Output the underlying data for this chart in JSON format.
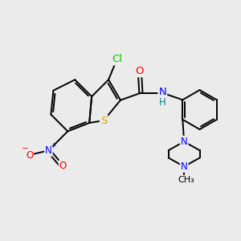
{
  "background_color": "#ebebeb",
  "bond_color": "#000000",
  "bond_width": 1.4,
  "atom_colors": {
    "C": "#000000",
    "Cl": "#00cc00",
    "O": "#ff0000",
    "N": "#0000ff",
    "S": "#ccaa00",
    "H": "#008888"
  },
  "font_size": 8.5,
  "fig_width": 3.0,
  "fig_height": 3.0,
  "dpi": 100
}
